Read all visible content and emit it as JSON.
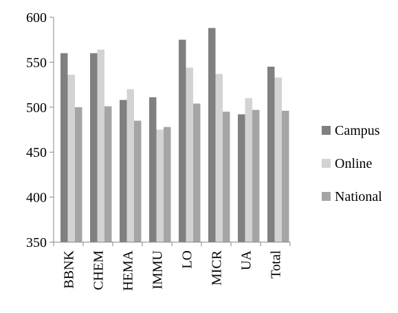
{
  "chart_data": {
    "type": "bar",
    "title": "",
    "xlabel": "",
    "ylabel": "",
    "categories": [
      "BBNK",
      "CHEM",
      "HEMA",
      "IMMU",
      "LO",
      "MICR",
      "UA",
      "Total"
    ],
    "series": [
      {
        "name": "Campus",
        "color": "#808080",
        "values": [
          560,
          560,
          508,
          511,
          575,
          588,
          492,
          545
        ]
      },
      {
        "name": "Online",
        "color": "#d3d3d3",
        "values": [
          536,
          564,
          520,
          475,
          544,
          537,
          510,
          533
        ]
      },
      {
        "name": "National",
        "color": "#a5a5a5",
        "values": [
          500,
          501,
          485,
          478,
          504,
          495,
          497,
          496
        ]
      }
    ],
    "ylim": [
      350,
      600
    ],
    "yticks": [
      350,
      400,
      450,
      500,
      550,
      600
    ],
    "grid": false,
    "legend_position": "right"
  }
}
